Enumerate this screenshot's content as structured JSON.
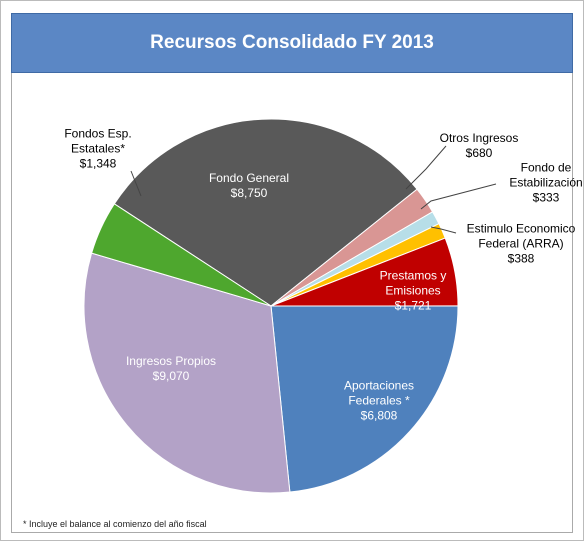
{
  "chart_data": {
    "type": "pie",
    "title": "Recursos Consolidado FY 2013",
    "categories": [
      "Fondo General",
      "Otros Ingresos",
      "Fondo de Estabilización",
      "Estimulo Economico Federal (ARRA)",
      "Prestamos y Emisiones",
      "Aportaciones Federales *",
      "Ingresos Propios",
      "Fondos Esp. Estatales*"
    ],
    "values": [
      8750,
      680,
      333,
      388,
      1721,
      6808,
      9070,
      1348
    ],
    "value_labels": [
      "$8,750",
      "$680",
      "$333",
      "$388",
      "$1,721",
      "$6,808",
      "$9,070",
      "$1,348"
    ],
    "colors": [
      "#595959",
      "#d99694",
      "#b7dee8",
      "#ffc000",
      "#c00000",
      "#4f81bd",
      "#b3a2c7",
      "#4ea72e"
    ],
    "footnote": "* Incluye el balance al comienzo del año fiscal"
  }
}
